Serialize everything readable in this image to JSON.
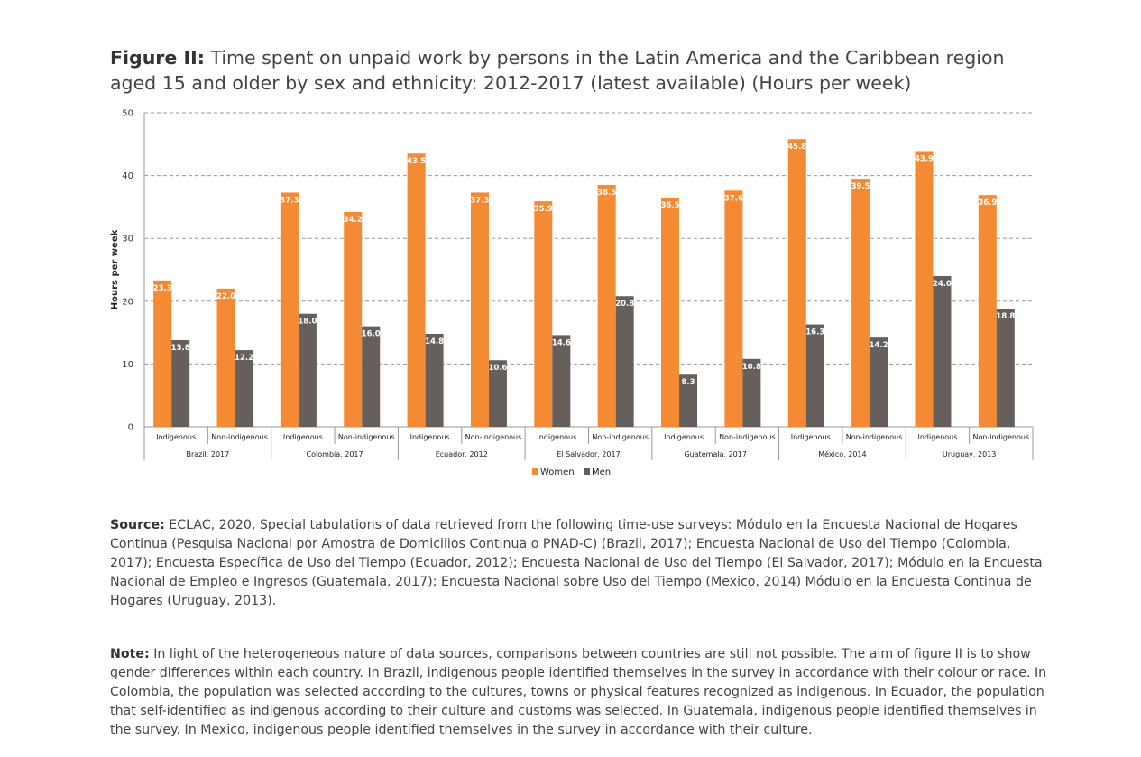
{
  "title": {
    "prefix": "Figure II:",
    "text": "Time spent on unpaid work by persons in the Latin America and the Caribbean region aged 15 and older by sex and ethnicity: 2012-2017 (latest available) (Hours per week)"
  },
  "chart_data": {
    "type": "bar",
    "ylabel": "Hours per week",
    "ylim": [
      0,
      50
    ],
    "yticks": [
      0,
      10,
      20,
      30,
      40,
      50
    ],
    "grid": true,
    "legend_position": "bottom",
    "categories": [
      "Indigenous",
      "Non-indigenous",
      "Indigenous",
      "Non-indigenous",
      "Indigenous",
      "Non-indigenous",
      "Indigenous",
      "Non-indigenous",
      "Indigenous",
      "Non-indigenous",
      "Indigenous",
      "Non-indigenous",
      "Indigenous",
      "Non-indigenous"
    ],
    "groups": [
      "Brazil, 2017",
      "Colombia, 2017",
      "Ecuador, 2012",
      "El Salvador, 2017",
      "Guatemala, 2017",
      "México, 2014",
      "Uruguay, 2013"
    ],
    "series": [
      {
        "name": "Women",
        "color": "#f58a34",
        "values": [
          23.3,
          22.0,
          37.3,
          34.2,
          43.5,
          37.3,
          35.9,
          38.5,
          36.5,
          37.6,
          45.8,
          39.5,
          43.9,
          36.9
        ]
      },
      {
        "name": "Men",
        "color": "#675f5b",
        "values": [
          13.8,
          12.2,
          18.0,
          16.0,
          14.8,
          10.6,
          14.6,
          20.8,
          8.3,
          10.8,
          16.3,
          14.2,
          24.0,
          18.8
        ]
      }
    ]
  },
  "source": {
    "label": "Source:",
    "text": " ECLAC, 2020, Special tabulations of data retrieved from the following time-use surveys: Módulo en la Encuesta Nacional de Hogares Continua (Pesquisa Nacional por Amostra de Domicilios Continua o PNAD-C) (Brazil, 2017); Encuesta Nacional de Uso del Tiempo (Colombia, 2017); Encuesta Específica de Uso del Tiempo (Ecuador, 2012); Encuesta Nacional de Uso del Tiempo (El Salvador, 2017); Módulo en la Encuesta Nacional de Empleo e Ingresos (Guatemala, 2017); Encuesta Nacional sobre Uso del Tiempo (Mexico, 2014) Módulo en la Encuesta Continua de Hogares (Uruguay, 2013)."
  },
  "note": {
    "label": "Note:",
    "text": " In light of the heterogeneous nature of data sources, comparisons between countries are still not possible. The aim of figure II is to show gender differences within each country. In Brazil, indigenous people identified themselves in the survey in accordance with their colour or race. In Colombia, the population was selected according to the cultures, towns or physical features recognized as indigenous. In Ecuador, the population that self-identified as indigenous according to their culture and customs was selected. In Guatemala, indigenous people identified themselves in the survey. In Mexico, indigenous people identified themselves in the survey in accordance with their culture."
  }
}
